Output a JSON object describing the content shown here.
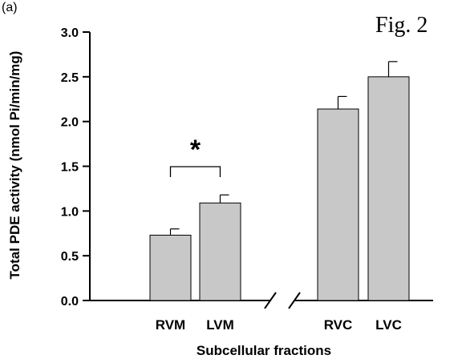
{
  "panel_label": "(a)",
  "figure_label": "Fig. 2",
  "significance_marker": "*",
  "chart_data": {
    "type": "bar",
    "title": "",
    "xlabel": "Subcellular fractions",
    "ylabel": "Total PDE activity (nmol Pi/min/mg)",
    "ylim": [
      0,
      3.0
    ],
    "yticks": [
      "0.0",
      "0.5",
      "1.0",
      "1.5",
      "2.0",
      "2.5",
      "3.0"
    ],
    "categories": [
      "RVM",
      "LVM",
      "RVC",
      "LVC"
    ],
    "values": [
      0.73,
      1.09,
      2.14,
      2.5
    ],
    "errors": [
      0.07,
      0.09,
      0.14,
      0.17
    ],
    "bar_color": "#c8c8c8",
    "axis_break": "between LVM and RVC",
    "significance": {
      "between": [
        "RVM",
        "LVM"
      ],
      "marker": "*"
    },
    "grid": false,
    "legend": "none"
  }
}
